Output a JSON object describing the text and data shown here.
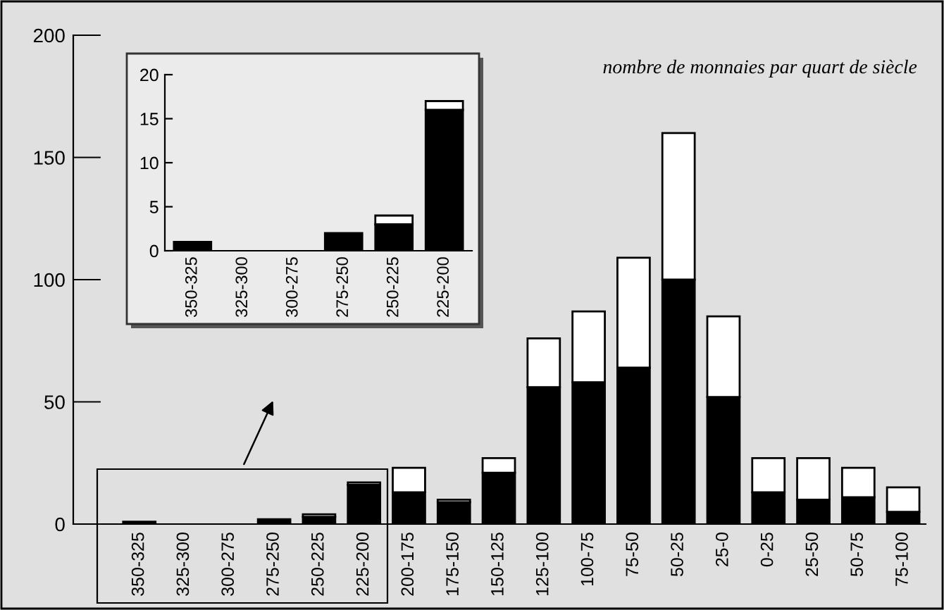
{
  "chart_data": [
    {
      "type": "bar",
      "stacked": true,
      "categories": [
        "350-325",
        "325-300",
        "300-275",
        "275-250",
        "250-225",
        "225-200",
        "200-175",
        "175-150",
        "150-125",
        "125-100",
        "100-75",
        "75-50",
        "50-25",
        "25-0",
        "0-25",
        "25-50",
        "50-75",
        "75-100"
      ],
      "series": [
        {
          "color": "#000000",
          "values": [
            1,
            0,
            0,
            2,
            3,
            16,
            13,
            9,
            21,
            56,
            58,
            64,
            100,
            52,
            13,
            10,
            11,
            5
          ]
        },
        {
          "color": "#ffffff",
          "values": [
            0,
            0,
            0,
            0,
            1,
            1,
            10,
            1,
            6,
            20,
            29,
            45,
            60,
            33,
            14,
            17,
            12,
            10
          ]
        }
      ],
      "ylim": [
        0,
        200
      ],
      "yticks": [
        0,
        50,
        100,
        150,
        200
      ],
      "grid": false,
      "legend": false,
      "annotations": [
        "nombre de monnaies par quart de siècle"
      ]
    },
    {
      "type": "bar",
      "stacked": true,
      "categories": [
        "350-325",
        "325-300",
        "300-275",
        "275-250",
        "250-225",
        "225-200"
      ],
      "series": [
        {
          "color": "#000000",
          "values": [
            1,
            0,
            0,
            2,
            3,
            16
          ]
        },
        {
          "color": "#ffffff",
          "values": [
            0,
            0,
            0,
            0,
            1,
            1
          ]
        }
      ],
      "ylim": [
        0,
        20
      ],
      "yticks": [
        0,
        5,
        10,
        15,
        20
      ],
      "grid": false,
      "legend": false
    }
  ]
}
